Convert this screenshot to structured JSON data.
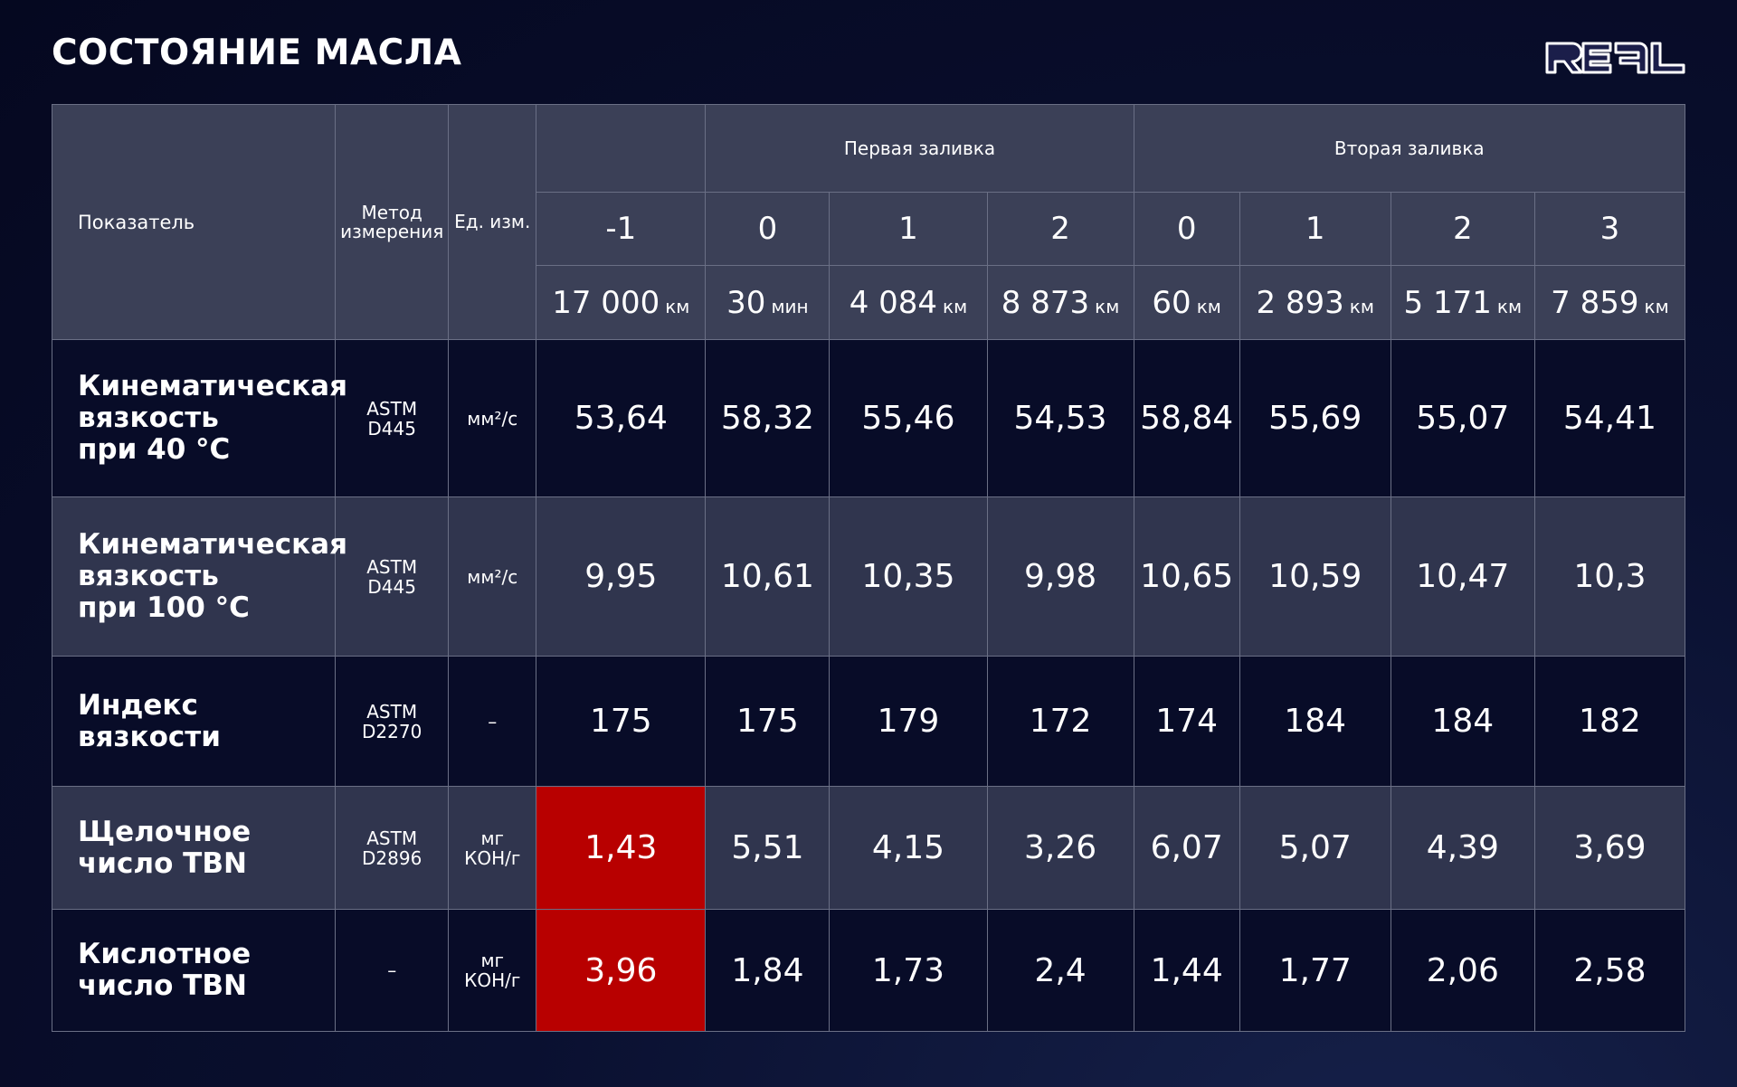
{
  "title": "СОСТОЯНИЕ МАСЛА",
  "logo": "REAL",
  "colors": {
    "highlight": "#b80000",
    "header": "#3b4057",
    "row_dark": "#080c28",
    "row_light": "#30354e"
  },
  "header": {
    "indicator": "Показатель",
    "method": "Метод\nизмерения",
    "unit": "Ед. изм.",
    "groups": [
      {
        "label": "Первая заливка",
        "span": 3
      },
      {
        "label": "Вторая заливка",
        "span": 4
      }
    ],
    "stages": [
      "-1",
      "0",
      "1",
      "2",
      "0",
      "1",
      "2",
      "3"
    ],
    "mileage": [
      {
        "v": "17 000",
        "u": "км"
      },
      {
        "v": "30",
        "u": "мин"
      },
      {
        "v": "4 084",
        "u": "км"
      },
      {
        "v": "8 873",
        "u": "км"
      },
      {
        "v": "60",
        "u": "км"
      },
      {
        "v": "2 893",
        "u": "км"
      },
      {
        "v": "5 171",
        "u": "км"
      },
      {
        "v": "7 859",
        "u": "км"
      }
    ]
  },
  "rows": [
    {
      "label": "Кинематическая\nвязкость\nпри 40 °С",
      "method": "ASTM\nD445",
      "unit": "мм²/с",
      "values": [
        "53,64",
        "58,32",
        "55,46",
        "54,53",
        "58,84",
        "55,69",
        "55,07",
        "54,41"
      ],
      "highlight": []
    },
    {
      "label": "Кинематическая\nвязкость\nпри 100 °С",
      "method": "ASTM\nD445",
      "unit": "мм²/с",
      "values": [
        "9,95",
        "10,61",
        "10,35",
        "9,98",
        "10,65",
        "10,59",
        "10,47",
        "10,3"
      ],
      "highlight": []
    },
    {
      "label": "Индекс\nвязкости",
      "method": "ASTM\nD2270",
      "unit": "–",
      "values": [
        "175",
        "175",
        "179",
        "172",
        "174",
        "184",
        "184",
        "182"
      ],
      "highlight": []
    },
    {
      "label": "Щелочное\nчисло TBN",
      "method": "ASTM\nD2896",
      "unit": "мг\nКОН/г",
      "values": [
        "1,43",
        "5,51",
        "4,15",
        "3,26",
        "6,07",
        "5,07",
        "4,39",
        "3,69"
      ],
      "highlight": [
        0
      ]
    },
    {
      "label": "Кислотное\nчисло TBN",
      "method": "–",
      "unit": "мг\nКОН/г",
      "values": [
        "3,96",
        "1,84",
        "1,73",
        "2,4",
        "1,44",
        "1,77",
        "2,06",
        "2,58"
      ],
      "highlight": [
        0
      ]
    }
  ]
}
